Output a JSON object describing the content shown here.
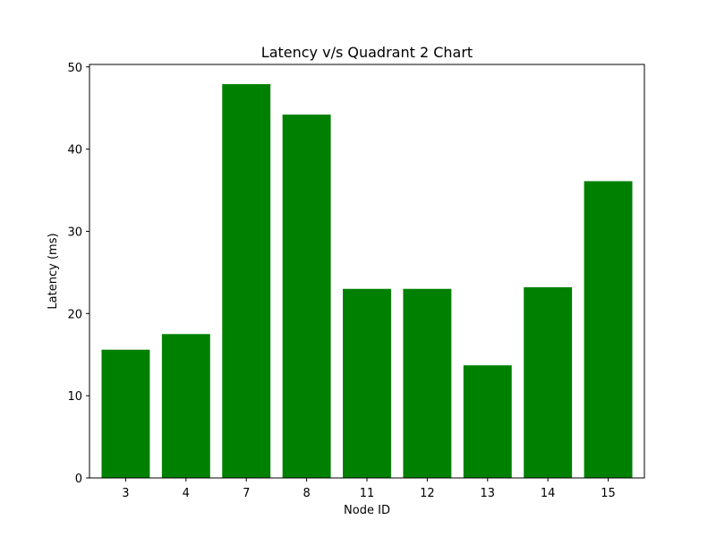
{
  "chart_data": {
    "type": "bar",
    "title": "Latency v/s Quadrant 2 Chart",
    "xlabel": "Node ID",
    "ylabel": "Latency (ms)",
    "categories": [
      "3",
      "4",
      "7",
      "8",
      "11",
      "12",
      "13",
      "14",
      "15"
    ],
    "values": [
      15.6,
      17.5,
      47.9,
      44.2,
      23.0,
      23.0,
      13.7,
      23.2,
      36.1
    ],
    "ylim": [
      0,
      50.3
    ],
    "yticks": [
      0,
      10,
      20,
      30,
      40,
      50
    ],
    "bar_color": "#008000",
    "grid": false
  }
}
